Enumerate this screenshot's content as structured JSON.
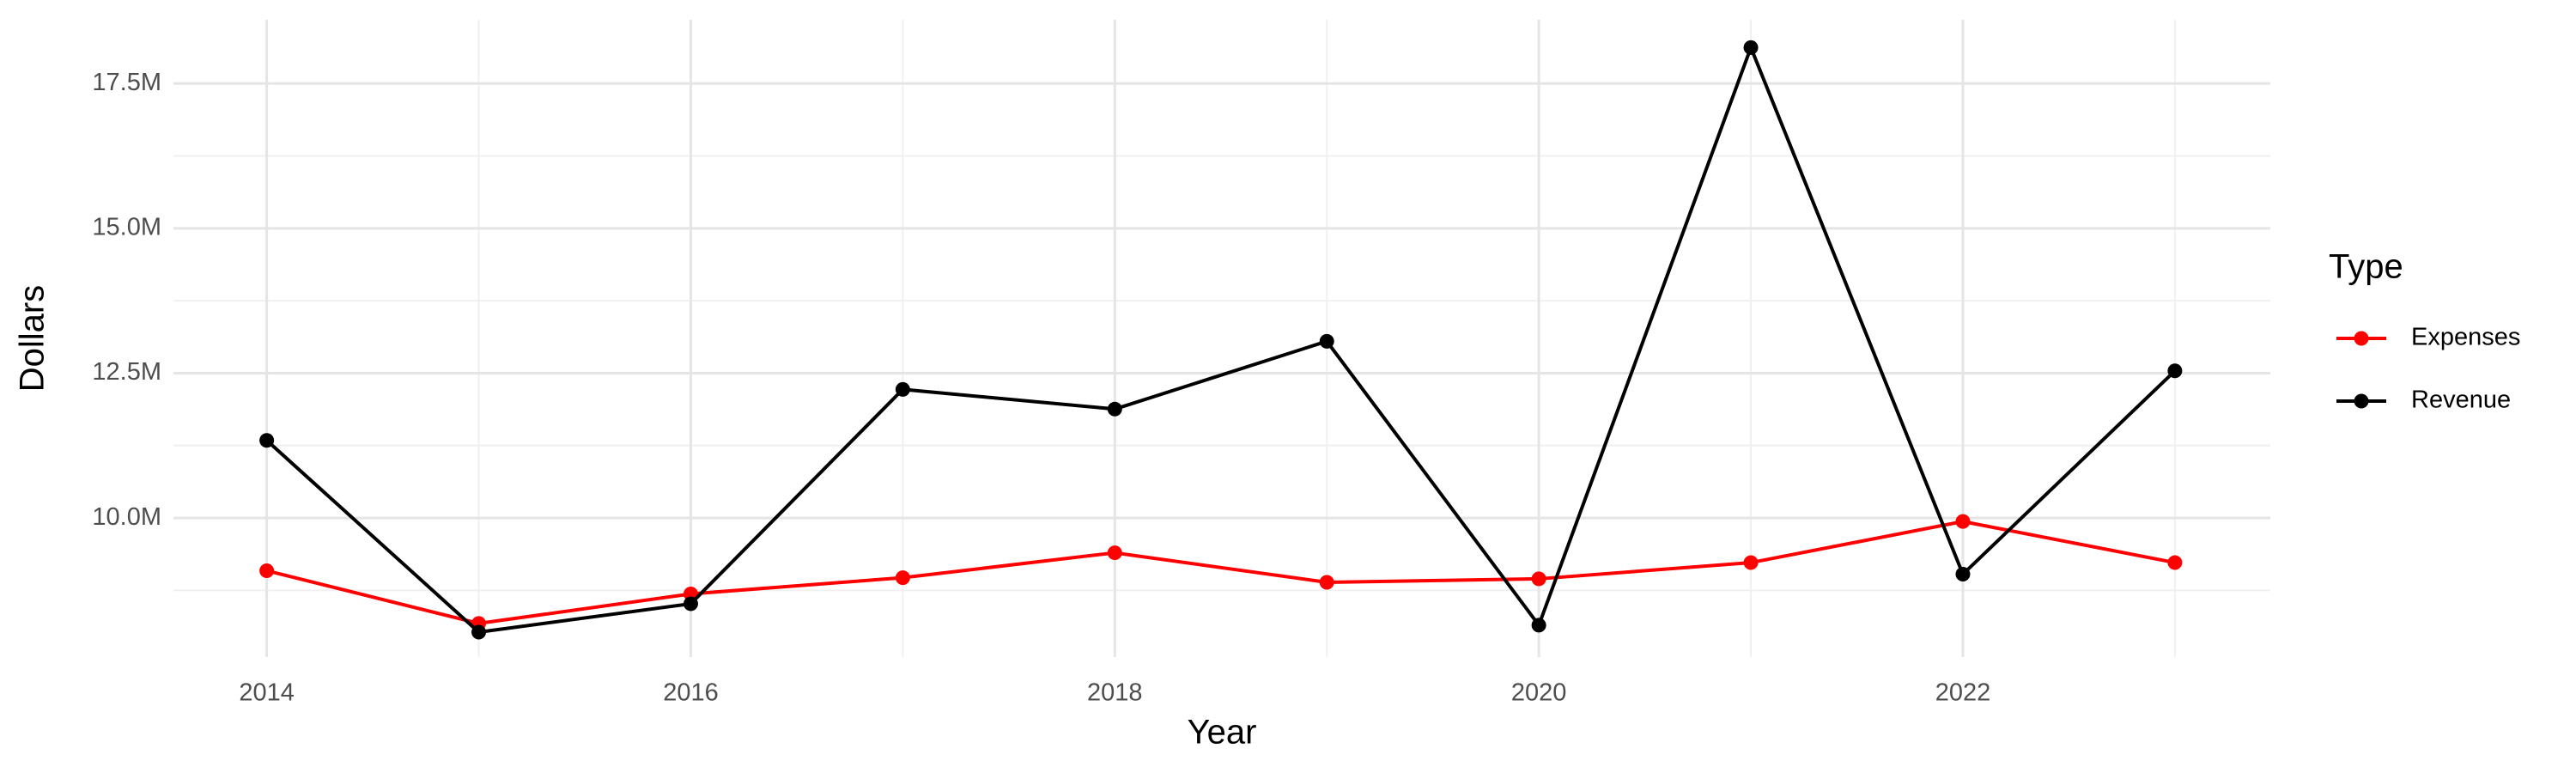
{
  "chart_data": {
    "type": "line",
    "x_label": "Year",
    "y_label": "Dollars",
    "legend_title": "Type",
    "x": [
      2014,
      2015,
      2016,
      2017,
      2018,
      2019,
      2020,
      2021,
      2022,
      2023
    ],
    "series": [
      {
        "name": "Expenses",
        "color": "#ff0000",
        "values": [
          9090000,
          8180000,
          8690000,
          8970000,
          9400000,
          8890000,
          8950000,
          9230000,
          9940000,
          9230000
        ]
      },
      {
        "name": "Revenue",
        "color": "#000000",
        "values": [
          11340000,
          8030000,
          8520000,
          12220000,
          11880000,
          13050000,
          8150000,
          18120000,
          9030000,
          12540000
        ]
      }
    ],
    "xlim": [
      2013.56,
      2023.45
    ],
    "xticks": [
      2014,
      2016,
      2018,
      2020,
      2022
    ],
    "ylim": [
      7600000,
      18600000
    ],
    "yticks": [
      {
        "value": 10000000,
        "label": "10.0M"
      },
      {
        "value": 12500000,
        "label": "12.5M"
      },
      {
        "value": 15000000,
        "label": "15.0M"
      },
      {
        "value": 17500000,
        "label": "17.5M"
      }
    ],
    "grid": true,
    "legend": "right"
  }
}
